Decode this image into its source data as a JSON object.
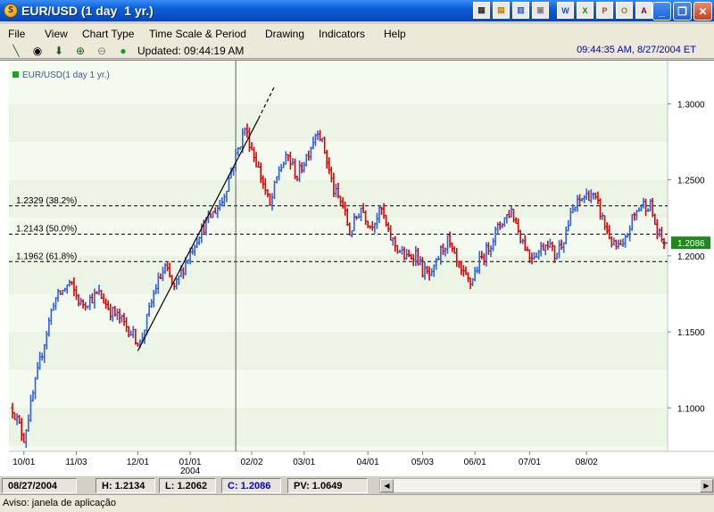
{
  "window": {
    "title": "EUR/USD (1 day  1 yr.)"
  },
  "menu": [
    "File",
    "View",
    "Chart Type",
    "Time Scale & Period",
    "Drawing",
    "Indicators",
    "Help"
  ],
  "toolbar": {
    "updated": "Updated: 09:44:19 AM",
    "clock": "09:44:35 AM, 8/27/2004 ET"
  },
  "status": {
    "date": "08/27/2004",
    "high": "H: 1.2134",
    "low": "L: 1.2062",
    "close": "C: 1.2086",
    "pv": "PV: 1.0649"
  },
  "aviso": "Aviso: janela de aplicação",
  "colors": {
    "up": "#3060e0",
    "down": "#e00000",
    "band": "#ecf4e6",
    "legend": "#22a022",
    "lastbg": "#1e8a1e"
  },
  "chart_data": {
    "type": "bar",
    "legend": "EUR/USD(1 day  1 yr.)",
    "y_ticks": [
      "1.3000",
      "1.2500",
      "1.2000",
      "1.1500",
      "1.1000"
    ],
    "y_tick_values": [
      1.3,
      1.25,
      1.2,
      1.15,
      1.1
    ],
    "ylim": [
      1.0714,
      1.3284
    ],
    "x_ticks": [
      "10/01",
      "11/03",
      "12/01",
      "01/01",
      "02/02",
      "03/01",
      "04/01",
      "05/03",
      "06/01",
      "07/01",
      "08/02"
    ],
    "x_tick_sub": "2004",
    "x_tick_day": [
      5,
      28,
      55,
      78,
      105,
      128,
      156,
      180,
      203,
      227,
      252
    ],
    "num_days": 287,
    "fib_levels": [
      {
        "label": "1.2329 (38.2%)",
        "value": 1.2329
      },
      {
        "label": "1.2143 (50.0%)",
        "value": 1.2143
      },
      {
        "label": "1.1962 (61.8%)",
        "value": 1.1962
      }
    ],
    "last_price": {
      "label": "1.2086",
      "value": 1.2086
    },
    "trendline": {
      "from": {
        "day": 55,
        "value": 1.1375
      },
      "to": {
        "day": 108,
        "value": 1.2902
      },
      "extend_to": {
        "day": 115,
        "value": 1.3115
      }
    },
    "cursor_day": 98,
    "anchors": [
      [
        0,
        1.1
      ],
      [
        5,
        1.08
      ],
      [
        12,
        1.13
      ],
      [
        18,
        1.17
      ],
      [
        25,
        1.182
      ],
      [
        30,
        1.168
      ],
      [
        38,
        1.175
      ],
      [
        43,
        1.164
      ],
      [
        47,
        1.159
      ],
      [
        52,
        1.15
      ],
      [
        56,
        1.142
      ],
      [
        63,
        1.18
      ],
      [
        67,
        1.192
      ],
      [
        71,
        1.178
      ],
      [
        76,
        1.196
      ],
      [
        82,
        1.215
      ],
      [
        87,
        1.226
      ],
      [
        92,
        1.236
      ],
      [
        96,
        1.256
      ],
      [
        102,
        1.284
      ],
      [
        106,
        1.266
      ],
      [
        110,
        1.248
      ],
      [
        113,
        1.232
      ],
      [
        117,
        1.257
      ],
      [
        121,
        1.265
      ],
      [
        125,
        1.252
      ],
      [
        130,
        1.269
      ],
      [
        134,
        1.284
      ],
      [
        137,
        1.269
      ],
      [
        141,
        1.243
      ],
      [
        145,
        1.233
      ],
      [
        148,
        1.215
      ],
      [
        153,
        1.232
      ],
      [
        157,
        1.22
      ],
      [
        162,
        1.23
      ],
      [
        165,
        1.214
      ],
      [
        169,
        1.205
      ],
      [
        173,
        1.198
      ],
      [
        177,
        1.202
      ],
      [
        180,
        1.19
      ],
      [
        184,
        1.186
      ],
      [
        188,
        1.203
      ],
      [
        191,
        1.21
      ],
      [
        194,
        1.198
      ],
      [
        197,
        1.188
      ],
      [
        201,
        1.182
      ],
      [
        205,
        1.196
      ],
      [
        208,
        1.203
      ],
      [
        212,
        1.215
      ],
      [
        215,
        1.223
      ],
      [
        219,
        1.23
      ],
      [
        223,
        1.213
      ],
      [
        227,
        1.2
      ],
      [
        231,
        1.203
      ],
      [
        235,
        1.21
      ],
      [
        238,
        1.2
      ],
      [
        242,
        1.212
      ],
      [
        246,
        1.23
      ],
      [
        250,
        1.238
      ],
      [
        254,
        1.241
      ],
      [
        257,
        1.233
      ],
      [
        260,
        1.22
      ],
      [
        264,
        1.206
      ],
      [
        268,
        1.205
      ],
      [
        272,
        1.224
      ],
      [
        276,
        1.234
      ],
      [
        280,
        1.233
      ],
      [
        283,
        1.215
      ],
      [
        286,
        1.2086
      ]
    ]
  }
}
